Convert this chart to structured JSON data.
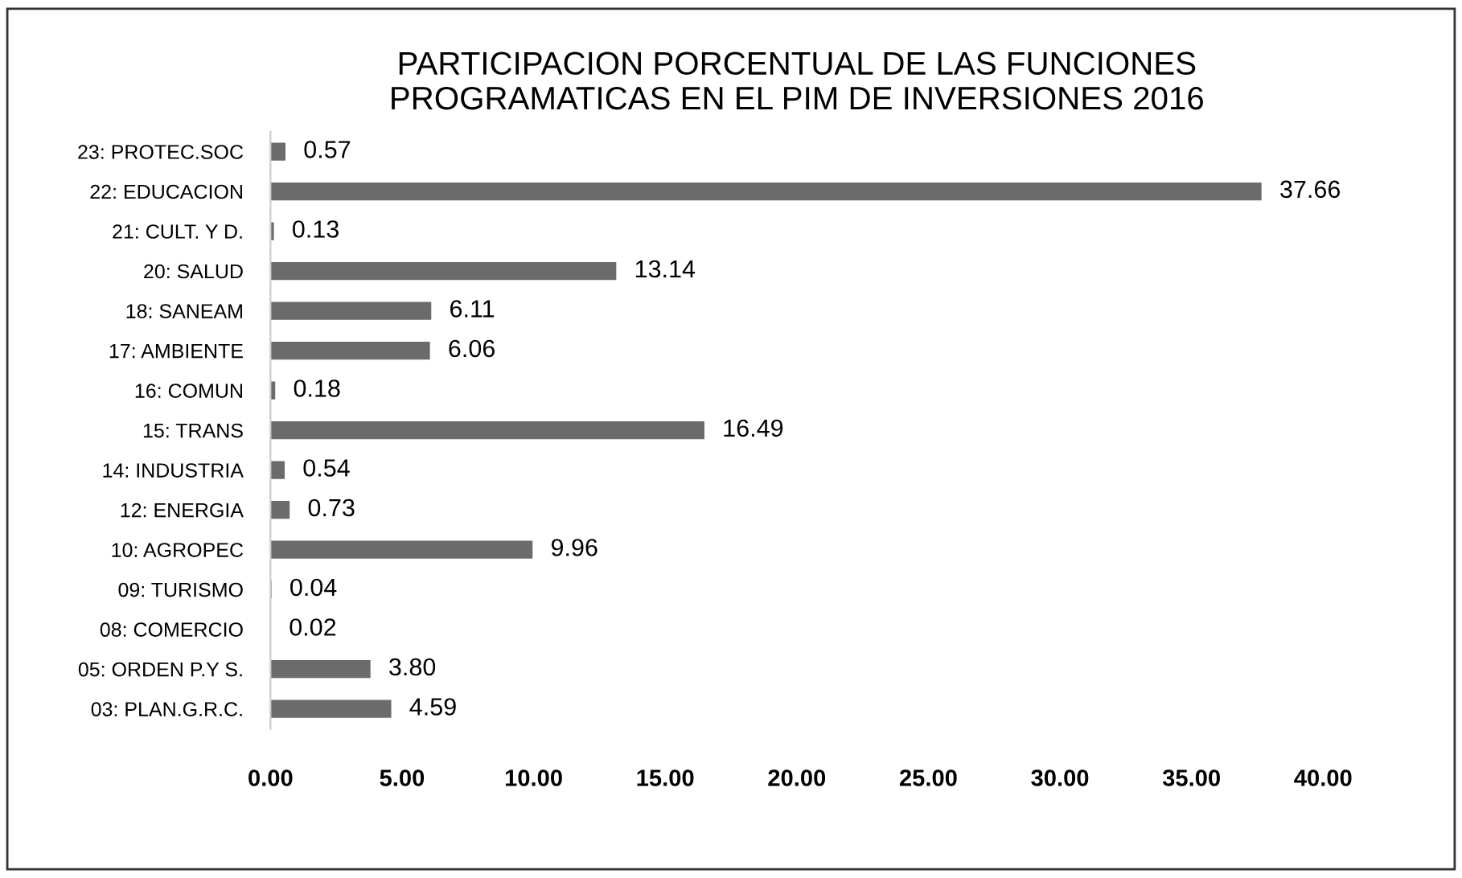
{
  "chart_data": {
    "type": "bar",
    "orientation": "horizontal",
    "title": "PARTICIPACION PORCENTUAL DE LAS FUNCIONES\nPROGRAMATICAS EN EL PIM DE INVERSIONES 2016",
    "categories": [
      "23: PROTEC.SOC",
      "22: EDUCACION",
      "21: CULT. Y D.",
      "20: SALUD",
      "18: SANEAM",
      "17: AMBIENTE",
      "16: COMUN",
      "15: TRANS",
      "14: INDUSTRIA",
      "12: ENERGIA",
      "10: AGROPEC",
      "09: TURISMO",
      "08: COMERCIO",
      "05: ORDEN P.Y S.",
      "03: PLAN.G.R.C."
    ],
    "values": [
      0.57,
      37.66,
      0.13,
      13.14,
      6.11,
      6.06,
      0.18,
      16.49,
      0.54,
      0.73,
      9.96,
      0.04,
      0.02,
      3.8,
      4.59
    ],
    "value_labels": [
      "0.57",
      "37.66",
      "0.13",
      "13.14",
      "6.11",
      "6.06",
      "0.18",
      "16.49",
      "0.54",
      "0.73",
      "9.96",
      "0.04",
      "0.02",
      "3.80",
      "4.59"
    ],
    "color": "#6b6b6b",
    "xlim": [
      0,
      40
    ],
    "xticks": [
      {
        "value": 0,
        "label": "0.00"
      },
      {
        "value": 5,
        "label": "5.00"
      },
      {
        "value": 10,
        "label": "10.00"
      },
      {
        "value": 15,
        "label": "15.00"
      },
      {
        "value": 20,
        "label": "20.00"
      },
      {
        "value": 25,
        "label": "25.00"
      },
      {
        "value": 30,
        "label": "30.00"
      },
      {
        "value": 35,
        "label": "35.00"
      },
      {
        "value": 40,
        "label": "40.00"
      }
    ],
    "grid": false,
    "legend": false
  }
}
